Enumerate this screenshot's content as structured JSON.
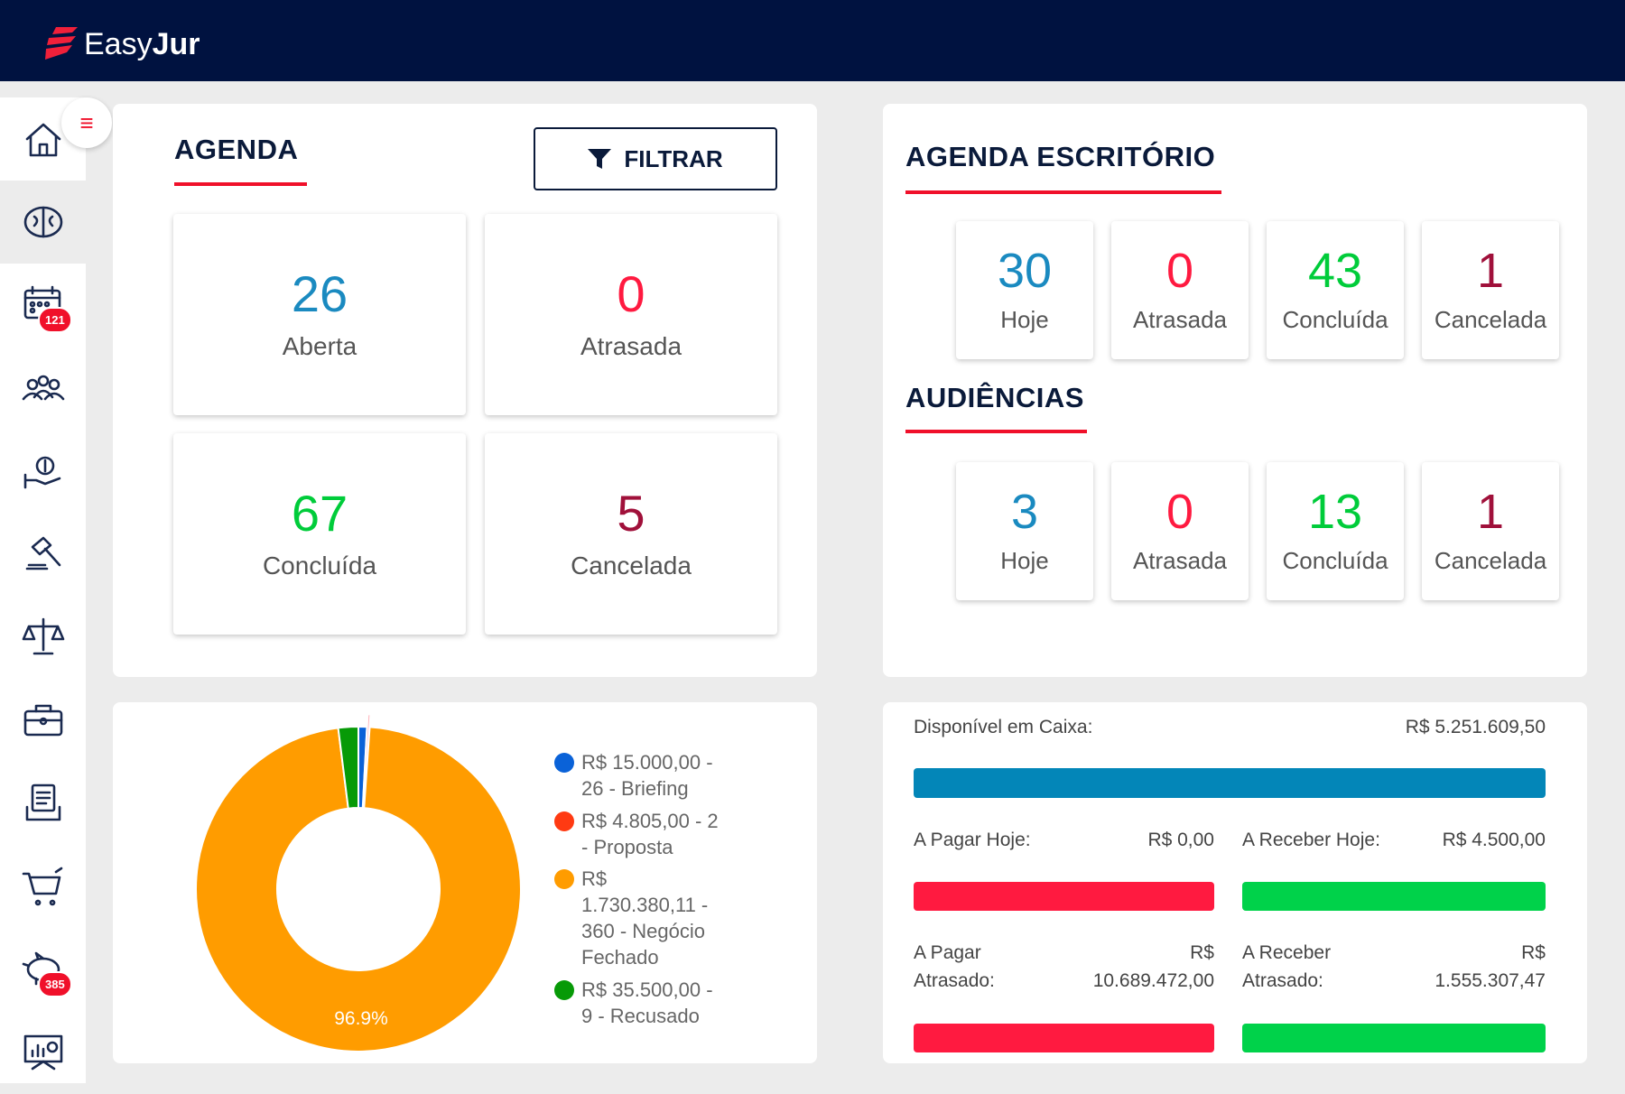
{
  "header": {
    "logo_light": "Easy",
    "logo_bold": "Jur"
  },
  "sidebar": {
    "items": [
      {
        "icon": "home-icon"
      },
      {
        "icon": "brain-icon",
        "selected": true
      },
      {
        "icon": "calendar-icon",
        "badge": "121"
      },
      {
        "icon": "people-icon"
      },
      {
        "icon": "money-hand-icon"
      },
      {
        "icon": "gavel-icon"
      },
      {
        "icon": "scales-icon"
      },
      {
        "icon": "briefcase-icon"
      },
      {
        "icon": "document-icon"
      },
      {
        "icon": "cart-icon"
      },
      {
        "icon": "piggy-bank-icon",
        "badge": "385"
      },
      {
        "icon": "presentation-icon"
      }
    ]
  },
  "agenda": {
    "title": "AGENDA",
    "filter_label": "FILTRAR",
    "stats": [
      {
        "value": "26",
        "label": "Aberta",
        "color": "#1a8ac0"
      },
      {
        "value": "0",
        "label": "Atrasada",
        "color": "#ff1a40"
      },
      {
        "value": "67",
        "label": "Concluída",
        "color": "#00cc3a"
      },
      {
        "value": "5",
        "label": "Cancelada",
        "color": "#a0103a"
      }
    ]
  },
  "escritorio": {
    "title": "AGENDA ESCRITÓRIO",
    "stats": [
      {
        "value": "30",
        "label": "Hoje",
        "color": "#1a8ac0"
      },
      {
        "value": "0",
        "label": "Atrasada",
        "color": "#ff1a40"
      },
      {
        "value": "43",
        "label": "Concluída",
        "color": "#00cc3a"
      },
      {
        "value": "1",
        "label": "Cancelada",
        "color": "#a0103a"
      }
    ]
  },
  "audiencias": {
    "title": "AUDIÊNCIAS",
    "stats": [
      {
        "value": "3",
        "label": "Hoje",
        "color": "#1a8ac0"
      },
      {
        "value": "0",
        "label": "Atrasada",
        "color": "#ff1a40"
      },
      {
        "value": "13",
        "label": "Concluída",
        "color": "#00cc3a"
      },
      {
        "value": "1",
        "label": "Cancelada",
        "color": "#a0103a"
      }
    ]
  },
  "chart_data": {
    "type": "pie",
    "donut": true,
    "legend_position": "right",
    "series": [
      {
        "name": "R$ 15.000,00 - 26 - Briefing",
        "value": 15000.0,
        "color": "#0a62d8"
      },
      {
        "name": "R$ 4.805,00 - 2 - Proposta",
        "value": 4805.0,
        "color": "#ff3a12"
      },
      {
        "name": "R$ 1.730.380,11 - 360 - Negócio Fechado",
        "value": 1730380.11,
        "color": "#ff9c00"
      },
      {
        "name": "R$ 35.500,00 - 9 - Recusado",
        "value": 35500.0,
        "color": "#079a07"
      }
    ],
    "data_labels": [
      "96.9%"
    ]
  },
  "legend_lines": [
    [
      "R$ 15.000,00 -",
      "26 - Briefing"
    ],
    [
      "R$ 4.805,00 - 2",
      "- Proposta"
    ],
    [
      "R$",
      "1.730.380,11 -",
      "360 - Negócio",
      "Fechado"
    ],
    [
      "R$ 35.500,00 -",
      "9 - Recusado"
    ]
  ],
  "finance": {
    "caixa_label": "Disponível em Caixa:",
    "caixa_value": "R$ 5.251.609,50",
    "pagar_hoje_label": "A Pagar Hoje:",
    "pagar_hoje_value": "R$ 0,00",
    "receber_hoje_label": "A Receber Hoje:",
    "receber_hoje_value": "R$ 4.500,00",
    "pagar_atrasado_label1": "A Pagar",
    "pagar_atrasado_label2": "Atrasado:",
    "pagar_atrasado_value1": "R$",
    "pagar_atrasado_value2": "10.689.472,00",
    "receber_atrasado_label1": "A Receber",
    "receber_atrasado_label2": "Atrasado:",
    "receber_atrasado_value1": "R$",
    "receber_atrasado_value2": "1.555.307,47",
    "colors": {
      "caixa": "#0386b8",
      "pagar": "#ff1a40",
      "receber": "#00d24a"
    }
  }
}
